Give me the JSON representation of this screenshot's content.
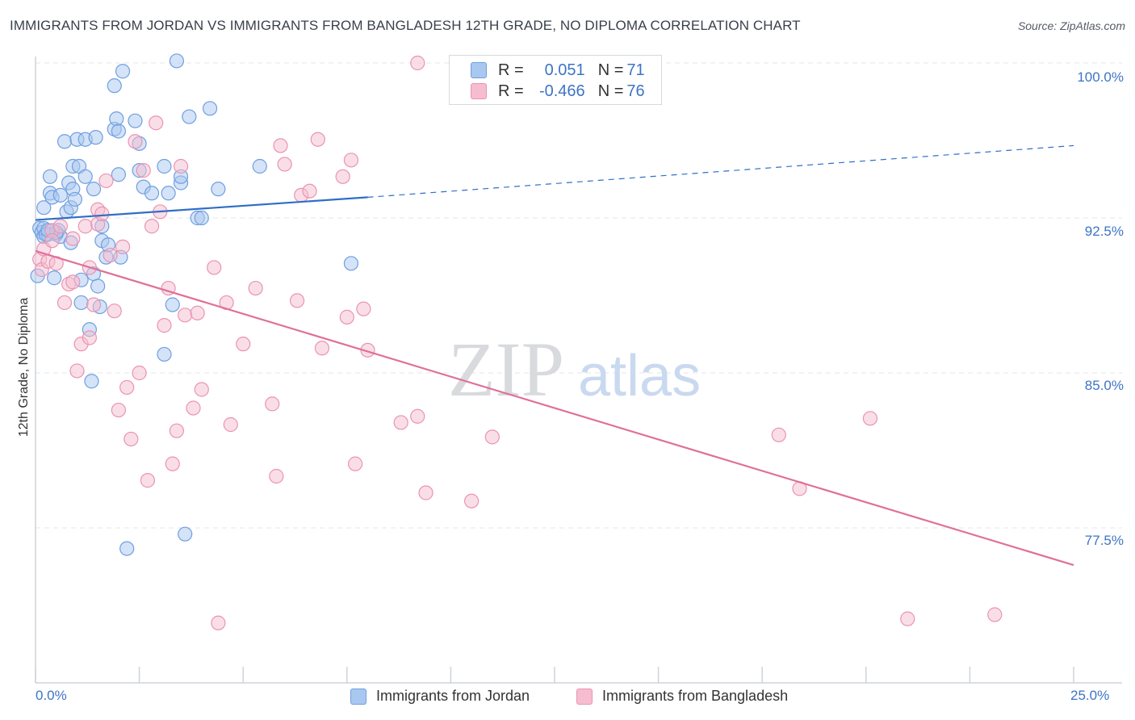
{
  "title": "IMMIGRANTS FROM JORDAN VS IMMIGRANTS FROM BANGLADESH 12TH GRADE, NO DIPLOMA CORRELATION CHART",
  "source": "Source: ZipAtlas.com",
  "watermark": {
    "zip": "ZIP",
    "atlas": "atlas"
  },
  "legend": {
    "rows": [
      {
        "r_label": "R = ",
        "r_value": "0.051",
        "n_label": "N = ",
        "n_value": "71"
      },
      {
        "r_label": "R = ",
        "r_value": "-0.466",
        "n_label": "N = ",
        "n_value": "76"
      }
    ]
  },
  "bottom_legend": [
    "Immigrants from Jordan",
    "Immigrants from Bangladesh"
  ],
  "colors": {
    "jordan_fill": "#a9c8f0",
    "jordan_stroke": "#6f9fe0",
    "jordan_line": "#2f6fc7",
    "bangladesh_fill": "#f6bdd0",
    "bangladesh_stroke": "#ea93b2",
    "bangladesh_line": "#e0709a",
    "tick_text": "#3d74c4",
    "grid": "#e3e6ea"
  },
  "chart_data": {
    "type": "scatter",
    "title": "IMMIGRANTS FROM JORDAN VS IMMIGRANTS FROM BANGLADESH 12TH GRADE, NO DIPLOMA CORRELATION CHART",
    "xlabel": "",
    "ylabel": "12th Grade, No Diploma",
    "xlim": [
      0,
      25
    ],
    "ylim": [
      71.5,
      101.5
    ],
    "x_tick_labels": [
      "0.0%",
      "25.0%"
    ],
    "y_ticks": [
      77.5,
      85.0,
      92.5,
      100.0
    ],
    "y_tick_labels": [
      "77.5%",
      "85.0%",
      "92.5%",
      "100.0%"
    ],
    "grid": true,
    "legend_position": "top-center",
    "series": [
      {
        "name": "Immigrants from Jordan",
        "r": 0.051,
        "n": 71,
        "trend": {
          "x0": 0,
          "y0": 92.4,
          "x1": 8.0,
          "y1": 93.5,
          "dashed_to_x": 25,
          "dashed_to_y": 96.0
        },
        "points": [
          [
            0.1,
            92.0
          ],
          [
            0.15,
            91.8
          ],
          [
            0.2,
            93.0
          ],
          [
            0.2,
            91.6
          ],
          [
            0.3,
            91.7
          ],
          [
            0.35,
            94.5
          ],
          [
            0.35,
            93.7
          ],
          [
            0.4,
            93.5
          ],
          [
            0.45,
            89.6
          ],
          [
            0.5,
            91.7
          ],
          [
            0.55,
            91.9
          ],
          [
            0.6,
            93.6
          ],
          [
            0.6,
            91.6
          ],
          [
            0.7,
            96.2
          ],
          [
            0.75,
            92.8
          ],
          [
            0.8,
            94.2
          ],
          [
            0.85,
            93.0
          ],
          [
            0.85,
            91.3
          ],
          [
            0.9,
            93.9
          ],
          [
            0.9,
            95.0
          ],
          [
            0.95,
            93.4
          ],
          [
            1.0,
            96.3
          ],
          [
            1.05,
            95.0
          ],
          [
            1.1,
            89.5
          ],
          [
            1.1,
            88.4
          ],
          [
            1.2,
            96.3
          ],
          [
            1.2,
            94.5
          ],
          [
            1.3,
            87.1
          ],
          [
            1.35,
            84.6
          ],
          [
            1.4,
            93.9
          ],
          [
            1.4,
            89.8
          ],
          [
            1.45,
            96.4
          ],
          [
            1.5,
            89.2
          ],
          [
            1.55,
            88.2
          ],
          [
            1.6,
            92.1
          ],
          [
            1.6,
            91.4
          ],
          [
            1.7,
            90.6
          ],
          [
            1.75,
            91.2
          ],
          [
            1.9,
            98.9
          ],
          [
            1.9,
            96.8
          ],
          [
            1.95,
            97.3
          ],
          [
            2.0,
            96.7
          ],
          [
            2.0,
            94.6
          ],
          [
            2.05,
            90.6
          ],
          [
            2.1,
            99.6
          ],
          [
            2.2,
            76.5
          ],
          [
            2.4,
            97.2
          ],
          [
            2.5,
            96.1
          ],
          [
            2.5,
            94.8
          ],
          [
            2.6,
            94.0
          ],
          [
            2.8,
            93.7
          ],
          [
            3.1,
            85.9
          ],
          [
            3.1,
            95.0
          ],
          [
            3.2,
            93.7
          ],
          [
            3.3,
            88.3
          ],
          [
            3.4,
            100.1
          ],
          [
            3.5,
            94.2
          ],
          [
            3.5,
            94.5
          ],
          [
            3.6,
            77.2
          ],
          [
            3.7,
            97.4
          ],
          [
            3.9,
            92.5
          ],
          [
            4.0,
            92.5
          ],
          [
            4.2,
            97.8
          ],
          [
            4.4,
            93.9
          ],
          [
            5.4,
            95.0
          ],
          [
            7.6,
            90.3
          ],
          [
            0.05,
            89.7
          ],
          [
            0.2,
            92.0
          ],
          [
            0.25,
            91.7
          ],
          [
            0.5,
            91.8
          ],
          [
            0.3,
            91.9
          ]
        ]
      },
      {
        "name": "Immigrants from Bangladesh",
        "r": -0.466,
        "n": 76,
        "trend": {
          "x0": 0,
          "y0": 90.9,
          "x1": 25,
          "y1": 75.7
        },
        "points": [
          [
            0.1,
            90.5
          ],
          [
            0.15,
            90.0
          ],
          [
            0.2,
            91.0
          ],
          [
            0.3,
            90.4
          ],
          [
            0.4,
            91.9
          ],
          [
            0.4,
            91.4
          ],
          [
            0.5,
            90.3
          ],
          [
            0.6,
            92.1
          ],
          [
            0.7,
            88.4
          ],
          [
            0.8,
            89.3
          ],
          [
            0.9,
            89.4
          ],
          [
            0.9,
            91.5
          ],
          [
            1.0,
            85.1
          ],
          [
            1.1,
            86.4
          ],
          [
            1.2,
            92.1
          ],
          [
            1.3,
            86.7
          ],
          [
            1.3,
            90.1
          ],
          [
            1.4,
            88.3
          ],
          [
            1.5,
            92.2
          ],
          [
            1.5,
            92.9
          ],
          [
            1.6,
            92.7
          ],
          [
            1.7,
            94.3
          ],
          [
            1.8,
            90.7
          ],
          [
            1.9,
            88.0
          ],
          [
            2.0,
            83.2
          ],
          [
            2.1,
            91.1
          ],
          [
            2.2,
            84.3
          ],
          [
            2.3,
            81.8
          ],
          [
            2.4,
            96.2
          ],
          [
            2.5,
            85.0
          ],
          [
            2.6,
            94.8
          ],
          [
            2.7,
            79.8
          ],
          [
            2.8,
            92.1
          ],
          [
            2.9,
            97.1
          ],
          [
            3.0,
            92.8
          ],
          [
            3.1,
            87.3
          ],
          [
            3.2,
            89.1
          ],
          [
            3.3,
            80.6
          ],
          [
            3.4,
            82.2
          ],
          [
            3.5,
            95.0
          ],
          [
            3.6,
            87.8
          ],
          [
            3.8,
            83.3
          ],
          [
            3.9,
            87.9
          ],
          [
            4.0,
            84.2
          ],
          [
            4.3,
            90.1
          ],
          [
            4.4,
            72.9
          ],
          [
            4.6,
            88.4
          ],
          [
            4.7,
            82.5
          ],
          [
            5.0,
            86.4
          ],
          [
            5.3,
            89.1
          ],
          [
            5.7,
            83.5
          ],
          [
            5.8,
            80.0
          ],
          [
            5.9,
            96.0
          ],
          [
            6.0,
            95.1
          ],
          [
            6.3,
            88.5
          ],
          [
            6.4,
            93.6
          ],
          [
            6.6,
            93.8
          ],
          [
            6.8,
            96.3
          ],
          [
            6.9,
            86.2
          ],
          [
            7.4,
            94.5
          ],
          [
            7.5,
            87.7
          ],
          [
            7.6,
            95.3
          ],
          [
            7.7,
            80.6
          ],
          [
            7.9,
            88.1
          ],
          [
            8.0,
            86.1
          ],
          [
            8.8,
            82.6
          ],
          [
            9.2,
            100.0
          ],
          [
            9.2,
            82.9
          ],
          [
            9.4,
            79.2
          ],
          [
            10.5,
            78.8
          ],
          [
            11.0,
            81.9
          ],
          [
            17.9,
            82.0
          ],
          [
            18.4,
            79.4
          ],
          [
            20.1,
            82.8
          ],
          [
            21.0,
            73.1
          ],
          [
            23.1,
            73.3
          ]
        ]
      }
    ]
  }
}
